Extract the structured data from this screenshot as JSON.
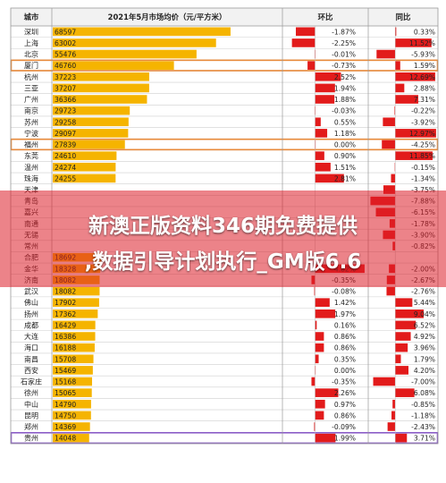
{
  "chart_data": {
    "type": "table",
    "headers": {
      "city": "城市",
      "price": "2021年5月市场均价（元/平方米）",
      "mom": "环比",
      "yoy": "同比"
    },
    "rows": [
      {
        "city": "深圳",
        "price": "68597",
        "mom": "-1.87%",
        "yoy": "0.33%"
      },
      {
        "city": "上海",
        "price": "63002",
        "mom": "-2.25%",
        "yoy": "11.52%"
      },
      {
        "city": "北京",
        "price": "55476",
        "mom": "-0.01%",
        "yoy": "-5.93%"
      },
      {
        "city": "厦门",
        "price": "46760",
        "mom": "-0.73%",
        "yoy": "1.59%"
      },
      {
        "city": "杭州",
        "price": "37223",
        "mom": "2.52%",
        "yoy": "12.69%"
      },
      {
        "city": "三亚",
        "price": "37207",
        "mom": "1.94%",
        "yoy": "2.88%"
      },
      {
        "city": "广州",
        "price": "36366",
        "mom": "1.88%",
        "yoy": "7.31%"
      },
      {
        "city": "南京",
        "price": "29723",
        "mom": "-0.03%",
        "yoy": "-0.22%"
      },
      {
        "city": "苏州",
        "price": "29258",
        "mom": "0.55%",
        "yoy": "-3.92%"
      },
      {
        "city": "宁波",
        "price": "29097",
        "mom": "1.18%",
        "yoy": "12.97%"
      },
      {
        "city": "福州",
        "price": "27839",
        "mom": "0.00%",
        "yoy": "-4.25%"
      },
      {
        "city": "东莞",
        "price": "24610",
        "mom": "0.90%",
        "yoy": "11.85%"
      },
      {
        "city": "温州",
        "price": "24274",
        "mom": "1.51%",
        "yoy": "-0.15%"
      },
      {
        "city": "珠海",
        "price": "24255",
        "mom": "2.81%",
        "yoy": "-1.34%"
      },
      {
        "city": "天津",
        "price": "",
        "mom": "",
        "yoy": "-3.75%"
      },
      {
        "city": "青岛",
        "price": "",
        "mom": "",
        "yoy": "-7.88%"
      },
      {
        "city": "嘉兴",
        "price": "",
        "mom": "",
        "yoy": "-6.15%"
      },
      {
        "city": "南通",
        "price": "",
        "mom": "",
        "yoy": "-1.78%"
      },
      {
        "city": "无锡",
        "price": "",
        "mom": "",
        "yoy": "-3.90%"
      },
      {
        "city": "常州",
        "price": "",
        "mom": "",
        "yoy": "-0.82%"
      },
      {
        "city": "合肥",
        "price": "18692",
        "mom": "",
        "yoy": ""
      },
      {
        "city": "金华",
        "price": "18328",
        "mom": "4.82%",
        "yoy": "-2.00%"
      },
      {
        "city": "济南",
        "price": "18082",
        "mom": "-0.35%",
        "yoy": "-2.67%"
      },
      {
        "city": "武汉",
        "price": "18082",
        "mom": "-0.08%",
        "yoy": "-2.76%"
      },
      {
        "city": "佛山",
        "price": "17902",
        "mom": "1.42%",
        "yoy": "5.44%"
      },
      {
        "city": "扬州",
        "price": "17362",
        "mom": "1.97%",
        "yoy": "9.04%"
      },
      {
        "city": "成都",
        "price": "16429",
        "mom": "0.16%",
        "yoy": "6.52%"
      },
      {
        "city": "大连",
        "price": "16386",
        "mom": "0.86%",
        "yoy": "4.92%"
      },
      {
        "city": "海口",
        "price": "16188",
        "mom": "0.86%",
        "yoy": "3.96%"
      },
      {
        "city": "南昌",
        "price": "15708",
        "mom": "0.35%",
        "yoy": "1.79%"
      },
      {
        "city": "西安",
        "price": "15469",
        "mom": "0.00%",
        "yoy": "4.20%"
      },
      {
        "city": "石家庄",
        "price": "15168",
        "mom": "-0.35%",
        "yoy": "-7.00%"
      },
      {
        "city": "徐州",
        "price": "15065",
        "mom": "2.26%",
        "yoy": "6.08%"
      },
      {
        "city": "中山",
        "price": "14790",
        "mom": "0.97%",
        "yoy": "-0.85%"
      },
      {
        "city": "昆明",
        "price": "14750",
        "mom": "0.86%",
        "yoy": "-1.18%"
      },
      {
        "city": "郑州",
        "price": "14369",
        "mom": "-0.09%",
        "yoy": "-2.43%"
      },
      {
        "city": "贵州",
        "price": "14048",
        "mom": "1.99%",
        "yoy": "3.71%"
      }
    ],
    "price_max": 70000,
    "mom_range": [
      -3,
      5
    ],
    "yoy_range": [
      -8,
      13
    ],
    "highlighted_rows": [
      "厦门",
      "福州",
      "贵州"
    ],
    "colors": {
      "price_bar": "#f5b400",
      "change_bar": "#e21b1b",
      "highlight_border_orange": "#e88a3a",
      "highlight_border_purple": "#8a5cc7",
      "grid": "#cfcfcf",
      "header_bg": "#f2f2f2"
    }
  },
  "overlay": {
    "line1": "新澳正版资料346期免费提供",
    "line2": ",数据引导计划执行_GM版6.6"
  }
}
